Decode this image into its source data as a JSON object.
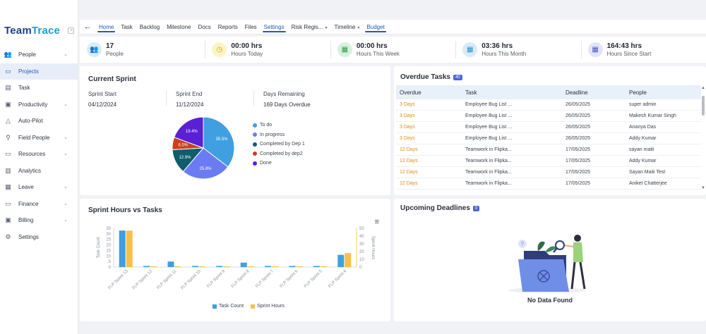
{
  "app": {
    "logo_left": "Team",
    "logo_right": "Trace",
    "collapse_glyph": "⇥"
  },
  "sidebar": {
    "items": [
      {
        "label": "People",
        "icon": "people-icon",
        "glyph": "👥",
        "chevron": true,
        "active": false
      },
      {
        "label": "Projects",
        "icon": "folder-icon",
        "glyph": "▭",
        "chevron": false,
        "active": true
      },
      {
        "label": "Task",
        "icon": "clipboard-icon",
        "glyph": "▤",
        "chevron": false,
        "active": false
      },
      {
        "label": "Productivity",
        "icon": "chart-box-icon",
        "glyph": "▣",
        "chevron": true,
        "active": false
      },
      {
        "label": "Auto-Pilot",
        "icon": "warning-triangle-icon",
        "glyph": "△",
        "chevron": false,
        "active": false
      },
      {
        "label": "Field People",
        "icon": "person-pin-icon",
        "glyph": "⚲",
        "chevron": true,
        "active": false
      },
      {
        "label": "Resources",
        "icon": "resources-icon",
        "glyph": "▭",
        "chevron": true,
        "active": false
      },
      {
        "label": "Analytics",
        "icon": "analytics-icon",
        "glyph": "▥",
        "chevron": false,
        "active": false
      },
      {
        "label": "Leave",
        "icon": "calendar-icon",
        "glyph": "▦",
        "chevron": true,
        "active": false
      },
      {
        "label": "Finance",
        "icon": "finance-icon",
        "glyph": "▭",
        "chevron": true,
        "active": false
      },
      {
        "label": "Billing",
        "icon": "billing-icon",
        "glyph": "▣",
        "chevron": true,
        "active": false
      },
      {
        "label": "Settings",
        "icon": "gear-icon",
        "glyph": "⚙",
        "chevron": false,
        "active": false
      }
    ]
  },
  "topbar": {
    "back_glyph": "←",
    "tabs": [
      {
        "label": "Home",
        "active": true,
        "dropdown": false
      },
      {
        "label": "Task",
        "active": false,
        "dropdown": false
      },
      {
        "label": "Backlog",
        "active": false,
        "dropdown": false
      },
      {
        "label": "Milestone",
        "active": false,
        "dropdown": false
      },
      {
        "label": "Docs",
        "active": false,
        "dropdown": false
      },
      {
        "label": "Reports",
        "active": false,
        "dropdown": false
      },
      {
        "label": "Files",
        "active": false,
        "dropdown": false
      },
      {
        "label": "Settings",
        "active": true,
        "dropdown": false
      },
      {
        "label": "Risk Regis...",
        "active": false,
        "dropdown": true
      },
      {
        "label": "Timeline",
        "active": false,
        "dropdown": true
      },
      {
        "label": "Budget",
        "active": true,
        "dropdown": false
      }
    ]
  },
  "stats": [
    {
      "value": "17",
      "label": "People",
      "icon": "people-icon",
      "glyph": "👥",
      "bg": "#d7ecf8",
      "fg": "#2a8fcf"
    },
    {
      "value": "00:00 hrs",
      "label": "Hours Today",
      "icon": "clock-icon",
      "glyph": "◷",
      "bg": "#fbf3c8",
      "fg": "#c9a100"
    },
    {
      "value": "00:00 hrs",
      "label": "Hours This Week",
      "icon": "calendar-week-icon",
      "glyph": "▦",
      "bg": "#d6f2dc",
      "fg": "#2c9c4b"
    },
    {
      "value": "03:36 hrs",
      "label": "Hours This Month",
      "icon": "calendar-month-icon",
      "glyph": "▦",
      "bg": "#d7ecf8",
      "fg": "#2a8fcf"
    },
    {
      "value": "164:43 hrs",
      "label": "Hours Since Start",
      "icon": "calendar-clock-icon",
      "glyph": "▦",
      "bg": "#e2e4fb",
      "fg": "#4b56c8"
    }
  ],
  "current_sprint": {
    "title": "Current Sprint",
    "start_label": "Sprint Start",
    "start_value": "04/12/2024",
    "end_label": "Sprint End",
    "end_value": "11/12/2024",
    "remaining_label": "Days Remaining",
    "remaining_value": "169 Days Overdue"
  },
  "overdue": {
    "title": "Overdue Tasks",
    "count": "40",
    "headers": [
      "Overdue",
      "Task",
      "Deadline",
      "People"
    ],
    "rows": [
      [
        "3 Days",
        "Employee Bug List ...",
        "26/05/2025",
        "super admin"
      ],
      [
        "3 Days",
        "Employee Bug List ...",
        "26/05/2025",
        "Makesh Kumar Singh"
      ],
      [
        "3 Days",
        "Employee Bug List ...",
        "26/05/2025",
        "Ananya Das"
      ],
      [
        "3 Days",
        "Employee Bug List ...",
        "26/05/2025",
        "Addy Kumar"
      ],
      [
        "12 Days",
        "Teamwork in Flipka...",
        "17/05/2025",
        "sayan maiti"
      ],
      [
        "12 Days",
        "Teamwork in Flipka...",
        "17/05/2025",
        "Addy Kumar"
      ],
      [
        "12 Days",
        "Teamwork in Flipka...",
        "17/05/2025",
        "Sayan Maiti Test"
      ],
      [
        "12 Days",
        "Teamwork in Flipka...",
        "17/05/2025",
        "Aniket Chatterjee"
      ]
    ]
  },
  "sprint_chart": {
    "title": "Sprint Hours vs Tasks",
    "menu_glyph": "≡"
  },
  "upcoming": {
    "title": "Upcoming Deadlines",
    "count": "0",
    "empty_text": "No Data Found"
  },
  "chart_data": [
    {
      "type": "pie",
      "labels": [
        "To do",
        "In progress",
        "Completed by Dep 1",
        "Completed by dep2",
        "Done"
      ],
      "values": [
        35.5,
        25.8,
        12.9,
        6.5,
        19.4
      ],
      "value_labels": [
        "35.5%",
        "25.8%",
        "12.9%",
        "6.5%",
        "19.4%"
      ],
      "colors": [
        "#3f9fe0",
        "#6b7cf2",
        "#0f5d6b",
        "#c8411e",
        "#5b1fd4"
      ],
      "legend": "right"
    },
    {
      "type": "bar",
      "categories": [
        "FLP Sprint 13",
        "FLP Sprint 12",
        "FLP Sprint 11",
        "FLP Sprint 10",
        "FLP Sprint 9",
        "FLP Sprint 8",
        "FLP Sprint 7",
        "FLP Sprint 6",
        "FLP Sprint 5",
        "FLP Sprint 4"
      ],
      "series": [
        {
          "name": "Task Count",
          "axis": "left",
          "color": "#3f9fe0",
          "values": [
            33,
            1,
            5,
            1,
            1,
            4,
            1,
            1,
            1,
            11
          ]
        },
        {
          "name": "Sprint Hours",
          "axis": "right",
          "color": "#f7c04a",
          "values": [
            47,
            1,
            1,
            1,
            1,
            1,
            1,
            1,
            1,
            18
          ]
        }
      ],
      "ylabel": "Task Count",
      "y2label": "Sprint Hours",
      "ylim": [
        0,
        35
      ],
      "y2lim": [
        0,
        50
      ],
      "yticks": [
        0,
        5,
        10,
        15,
        20,
        25,
        30,
        35
      ],
      "y2ticks": [
        0,
        10,
        20,
        30,
        40,
        50
      ],
      "legend": "bottom"
    }
  ]
}
